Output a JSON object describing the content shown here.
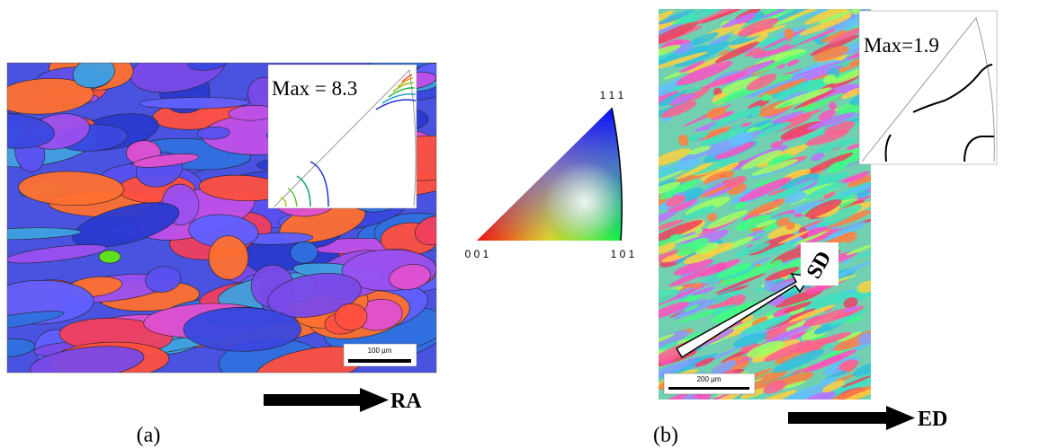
{
  "panel_a": {
    "max_label": "Max = 8.3",
    "scale_bar": "100 µm",
    "direction": "RA",
    "caption": "(a)"
  },
  "legend_triangle": {
    "top": "1 1 1",
    "left": "0 0 1",
    "right": "1 0 1"
  },
  "panel_b": {
    "max_label": "Max=1.9",
    "scale_bar": "200 µm",
    "sample_axis": "SD",
    "direction": "ED",
    "caption": "(b)"
  }
}
